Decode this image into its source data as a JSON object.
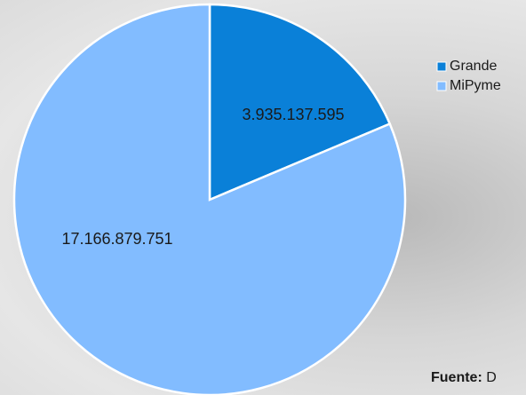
{
  "chart_data": {
    "type": "pie",
    "categories": [
      "Grande",
      "MiPyme"
    ],
    "values": [
      3935137595,
      17166879751
    ],
    "value_labels": [
      "3.935.137.595",
      "17.166.879.751"
    ],
    "colors": [
      "#0a80d8",
      "#82bcff"
    ],
    "legend": "right"
  },
  "source": {
    "label": "Fuente:",
    "text": "D"
  }
}
